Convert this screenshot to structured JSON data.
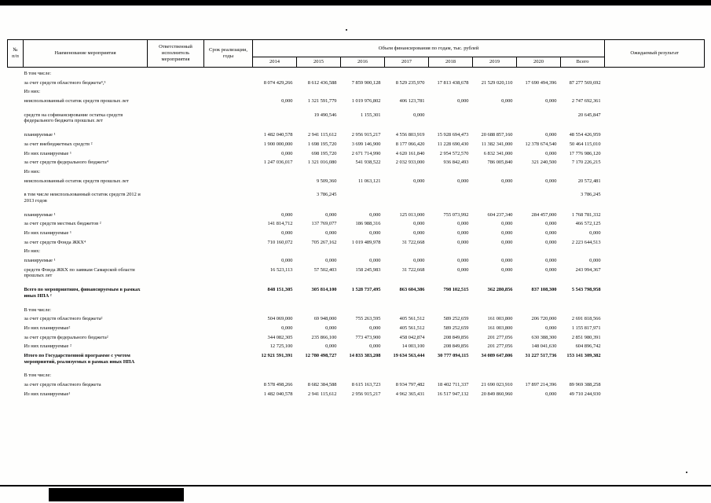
{
  "table": {
    "header": {
      "num": "№\nп/п",
      "name": "Наименование мероприятия",
      "responsible": "Ответственный исполнитель мероприятия",
      "term": "Срок реализации, годы",
      "funding": "Объем финансирования по годам, тыс. рублей",
      "years": [
        "2014",
        "2015",
        "2016",
        "2017",
        "2018",
        "2019",
        "2020",
        "Всего"
      ],
      "result": "Ожидаемый результат"
    },
    "rows": [
      {
        "label": "В том числе:",
        "bold": false,
        "gap": false,
        "values": []
      },
      {
        "label": "за счет средств областного бюджета⁴,⁵",
        "bold": false,
        "gap": false,
        "values": [
          "8 074 429,266",
          "8 612 436,588",
          "7 859 900,128",
          "8 529 235,970",
          "17 813 438,678",
          "21 529 020,110",
          "17 690 494,396",
          "87 277 569,692"
        ]
      },
      {
        "label": "Из них:",
        "bold": false,
        "gap": false,
        "values": []
      },
      {
        "label": "неиспользованный остаток средств прошлых лет",
        "bold": false,
        "gap": false,
        "values": [
          "0,000",
          "1 321 591,779",
          "1 019 976,802",
          "406 123,781",
          "0,000",
          "0,000",
          "0,000",
          "2 747 692,361"
        ]
      },
      {
        "label": "средств на софинансирование остатка средств федерального бюджета прошлых лет",
        "bold": false,
        "gap": true,
        "values": [
          "",
          "19 490,546",
          "1 155,301",
          "0,000",
          "",
          "",
          "",
          "20 645,847"
        ]
      },
      {
        "label": "планируемые ¹",
        "bold": false,
        "gap": true,
        "values": [
          "1 482 040,578",
          "2 941 115,612",
          "2 956 915,217",
          "4 556 803,919",
          "15 928 694,473",
          "20 688 857,160",
          "0,000",
          "48 554 426,959"
        ]
      },
      {
        "label": "за счет внебюджетных средств ²",
        "bold": false,
        "gap": false,
        "values": [
          "1 900 000,000",
          "1 698 195,720",
          "3 699 146,900",
          "8 177 066,420",
          "11 228 690,430",
          "11 382 341,000",
          "12 378 674,540",
          "50 464 115,010"
        ]
      },
      {
        "label": "Из них планируемые ¹",
        "bold": false,
        "gap": false,
        "values": [
          "0,000",
          "698 195,720",
          "2 671 714,990",
          "4 620 161,840",
          "2 954 572,570",
          "6 832 341,000",
          "0,000",
          "17 776 986,120"
        ]
      },
      {
        "label": "за счет средств федерального бюджета⁴",
        "bold": false,
        "gap": false,
        "values": [
          "1 247 036,017",
          "1 321 016,080",
          "541 938,522",
          "2 032 933,000",
          "936 842,493",
          "786 005,840",
          "321 240,500",
          "7 170 226,215"
        ]
      },
      {
        "label": "Из них:",
        "bold": false,
        "gap": false,
        "values": []
      },
      {
        "label": "неиспользованный остаток средств прошлых лет",
        "bold": false,
        "gap": false,
        "values": [
          "",
          "9 509,360",
          "11 063,121",
          "0,000",
          "0,000",
          "0,000",
          "0,000",
          "20 572,481"
        ]
      },
      {
        "label": "в том числе неиспользованный остаток средств 2012 и 2013 годов",
        "bold": false,
        "gap": true,
        "values": [
          "",
          "3 786,245",
          "",
          "",
          "",
          "",
          "",
          "3 786,245"
        ]
      },
      {
        "label": "планируемые ¹",
        "bold": false,
        "gap": true,
        "values": [
          "0,000",
          "0,000",
          "0,000",
          "125 013,000",
          "755 073,992",
          "604 237,340",
          "284 457,000",
          "1 768 781,332"
        ]
      },
      {
        "label": "за счет средств местных бюджетов ²",
        "bold": false,
        "gap": false,
        "values": [
          "141 814,712",
          "137 769,077",
          "186 988,316",
          "0,000",
          "0,000",
          "0,000",
          "0,000",
          "466 572,125"
        ]
      },
      {
        "label": "Из них планируемые ¹",
        "bold": false,
        "gap": false,
        "values": [
          "0,000",
          "0,000",
          "0,000",
          "0,000",
          "0,000",
          "0,000",
          "0,000",
          "0,000"
        ]
      },
      {
        "label": "за счет средств Фонда ЖКХ⁴",
        "bold": false,
        "gap": false,
        "values": [
          "710 160,072",
          "705 267,162",
          "1 019 489,978",
          "31 722,668",
          "0,000",
          "0,000",
          "0,000",
          "2 223 644,513"
        ]
      },
      {
        "label": "Из них:",
        "bold": false,
        "gap": false,
        "values": []
      },
      {
        "label": "планируемые ¹",
        "bold": false,
        "gap": false,
        "values": [
          "0,000",
          "0,000",
          "0,000",
          "0,000",
          "0,000",
          "0,000",
          "0,000",
          "0,000"
        ]
      },
      {
        "label": "средств Фонда ЖКХ по заявкам Самарской области прошлых лет",
        "bold": false,
        "gap": false,
        "values": [
          "16 523,113",
          "57 502,403",
          "158 245,983",
          "31 722,668",
          "0,000",
          "0,000",
          "0,000",
          "243 994,367"
        ]
      },
      {
        "label": "Всего по мероприятиям, финансируемым в рамках иных НПА ²",
        "bold": true,
        "gap": true,
        "values": [
          "848 151,305",
          "305 814,100",
          "1 528 737,495",
          "863 604,386",
          "798 102,515",
          "362 280,856",
          "837 108,300",
          "5 543 798,958"
        ]
      },
      {
        "label": "В том числе:",
        "bold": false,
        "gap": true,
        "values": []
      },
      {
        "label": "за счет средств областного бюджета²",
        "bold": false,
        "gap": false,
        "values": [
          "504 069,000",
          "69 948,000",
          "755 263,595",
          "405 561,512",
          "589 252,659",
          "161 003,800",
          "206 720,000",
          "2 691 818,566"
        ]
      },
      {
        "label": "Из них планируемые²",
        "bold": false,
        "gap": false,
        "values": [
          "0,000",
          "0,000",
          "0,000",
          "405 561,512",
          "589 252,659",
          "161 003,800",
          "0,000",
          "1 155 817,971"
        ]
      },
      {
        "label": "за счет средств федерального  бюджета²",
        "bold": false,
        "gap": false,
        "values": [
          "344 082,305",
          "235 866,100",
          "773 473,900",
          "458 042,874",
          "208 849,856",
          "201 277,056",
          "630 388,300",
          "2 851 980,391"
        ]
      },
      {
        "label": "Из них планируемые ²",
        "bold": false,
        "gap": false,
        "values": [
          "12 725,100",
          "0,000",
          "0,000",
          "14 003,100",
          "208 849,856",
          "201 277,056",
          "148 041,630",
          "604 896,742"
        ]
      },
      {
        "label": "Итого по Государственной программе с учетом мероприятий, реализуемых в рамках иных НПА",
        "bold": true,
        "gap": false,
        "values": [
          "12 921 591,391",
          "12 780 498,727",
          "14 833 383,208",
          "19 634 563,444",
          "30 777 094,115",
          "34 089 647,806",
          "31 227 517,736",
          "153 141 309,382"
        ]
      },
      {
        "label": "В том числе:",
        "bold": false,
        "gap": true,
        "values": []
      },
      {
        "label": "за счет средств областного бюджета",
        "bold": false,
        "gap": false,
        "values": [
          "8 578 498,266",
          "8 682 384,588",
          "8 615 163,723",
          "8 934 797,482",
          "18 402 711,337",
          "21 690 023,910",
          "17 897 214,396",
          "89 969 388,258"
        ]
      },
      {
        "label": "Из них планируемые¹",
        "bold": false,
        "gap": false,
        "values": [
          "1 482 040,578",
          "2 941 115,612",
          "2 956 915,217",
          "4 962 365,431",
          "16 517 947,132",
          "20 849 860,960",
          "0,000",
          "49 710 244,930"
        ]
      }
    ]
  }
}
